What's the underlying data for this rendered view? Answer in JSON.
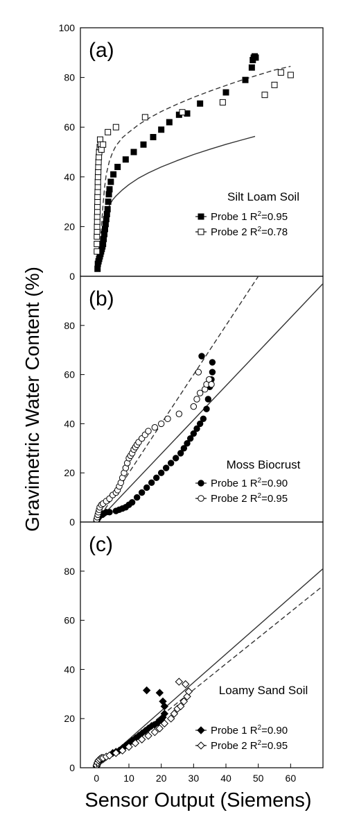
{
  "colors": {
    "axis": "#000000",
    "marker_filled": "#000000",
    "marker_open_fill": "#ffffff",
    "fit_line": "#333333"
  },
  "chart_data": {
    "type": "scatter",
    "xlabel": "Sensor Output (Siemens)",
    "ylabel": "Gravimetric Water Content (%)",
    "xlim": [
      -5,
      70
    ],
    "xticks": [
      "0",
      "10",
      "20",
      "30",
      "40",
      "50",
      "60"
    ],
    "grid": false,
    "panels": [
      {
        "label": "(a)",
        "title": "Silt Loam Soil",
        "ylim": [
          0,
          100
        ],
        "yticks": [
          "0",
          "20",
          "40",
          "60",
          "80",
          "100"
        ],
        "legend": [
          {
            "text": "Probe 1 R",
            "sup": "2",
            "value": "=0.95"
          },
          {
            "text": "Probe 2 R",
            "sup": "2",
            "value": "=0.78"
          }
        ],
        "series": [
          {
            "marker": "square-filled",
            "x": [
              0.3,
              0.4,
              0.6,
              0.8,
              1.0,
              1.2,
              1.4,
              1.6,
              1.8,
              2.0,
              2.2,
              2.4,
              2.6,
              2.8,
              3.0,
              3.2,
              3.4,
              3.6,
              3.8,
              4.0,
              4.4,
              5.2,
              6.5,
              9.0,
              11.5,
              14.5,
              17.5,
              20.0,
              22.5,
              25.5,
              28.0,
              32.0,
              40.0,
              46.0,
              48.0,
              48.3,
              48.6,
              48.9,
              49.2
            ],
            "y": [
              3,
              5,
              6,
              7,
              8,
              9,
              10,
              11,
              12,
              13,
              15,
              17,
              19,
              21,
              23,
              25,
              27,
              30,
              33,
              35,
              38,
              41,
              44,
              47,
              50,
              53,
              56,
              59,
              62,
              65,
              65.5,
              69.5,
              74,
              79,
              84,
              87,
              88,
              88.5,
              88
            ]
          },
          {
            "marker": "square-open",
            "x": [
              0.1,
              0.1,
              0.1,
              0.15,
              0.15,
              0.2,
              0.2,
              0.25,
              0.25,
              0.3,
              0.3,
              0.35,
              0.4,
              0.4,
              0.45,
              0.5,
              0.55,
              0.6,
              0.7,
              0.8,
              1.0,
              1.1,
              1.3,
              1.5,
              2.0,
              3.5,
              6.0,
              15.0,
              26.5,
              39.0,
              52.0,
              55.0,
              57.0,
              60.0
            ],
            "y": [
              10,
              13,
              16,
              18,
              20,
              22,
              24,
              26,
              28,
              30,
              32,
              34,
              36,
              38,
              40,
              42,
              44,
              46,
              48,
              50,
              52,
              55,
              53,
              51,
              53,
              58,
              60,
              64,
              66,
              70,
              73,
              77,
              82,
              81
            ]
          }
        ],
        "fits": [
          {
            "style": "solid",
            "x": [
              0.5,
              1,
              2,
              3,
              4,
              5,
              6,
              8,
              10,
              13,
              16,
              20,
              25,
              30,
              35,
              40,
              45,
              49
            ],
            "y": [
              4.1,
              9.5,
              18.8,
              25.0,
              28.6,
              30.8,
              32.3,
              34.8,
              36.9,
              39.5,
              41.6,
              44.0,
              46.6,
              49.0,
              51.1,
              53.1,
              54.9,
              56.3
            ]
          },
          {
            "style": "dashed",
            "x": [
              0.5,
              1,
              1.5,
              2,
              2.5,
              3,
              4,
              5,
              6,
              8,
              10,
              13,
              16,
              20,
              25,
              30,
              35,
              40,
              45,
              50,
              55,
              60
            ],
            "y": [
              5.0,
              11.0,
              20.0,
              29.0,
              36.0,
              41.0,
              46.5,
              50.0,
              52.5,
              55.8,
              58.0,
              61.0,
              63.5,
              66.3,
              69.3,
              72.0,
              74.5,
              76.8,
              79.0,
              81.0,
              83.0,
              84.5
            ]
          }
        ]
      },
      {
        "label": "(b)",
        "title": "Moss Biocrust",
        "ylim": [
          0,
          100
        ],
        "yticks": [
          "0",
          "20",
          "40",
          "60",
          "80"
        ],
        "legend": [
          {
            "text": "Probe 1 R",
            "sup": "2",
            "value": "=0.90"
          },
          {
            "text": "Probe 2 R",
            "sup": "2",
            "value": "=0.95"
          }
        ],
        "series": [
          {
            "marker": "circle-filled",
            "x": [
              0,
              0.2,
              0.4,
              0.7,
              1.0,
              1.4,
              1.8,
              2.3,
              3.0,
              4.0,
              6.0,
              7.0,
              8.0,
              9.0,
              10.0,
              11.0,
              12.5,
              14.0,
              15.5,
              17.0,
              18.5,
              20.0,
              21.5,
              23.0,
              24.5,
              26.0,
              27.0,
              28.0,
              29.0,
              30.0,
              31.0,
              32.0,
              33.0,
              34.0,
              34.5,
              35.0,
              35.5,
              35.8,
              35.8,
              32.5
            ],
            "y": [
              0.5,
              1,
              1.5,
              2,
              2.5,
              3,
              3,
              3.5,
              4,
              4,
              4.5,
              5,
              5.5,
              6,
              7,
              8,
              10,
              12,
              14,
              16,
              18,
              20,
              22,
              24,
              26,
              28,
              30,
              32,
              34,
              36,
              38,
              40,
              42,
              46,
              50,
              55,
              58,
              61,
              65,
              67.5
            ]
          },
          {
            "marker": "circle-open",
            "x": [
              0,
              0.2,
              0.4,
              0.6,
              0.8,
              1.0,
              1.5,
              2.0,
              3.0,
              4.0,
              5.0,
              6.0,
              6.5,
              7.0,
              7.5,
              8.0,
              8.5,
              9.0,
              9.5,
              10.0,
              10.5,
              11.0,
              11.5,
              12.0,
              12.5,
              13.0,
              14.0,
              15.0,
              16.0,
              18.0,
              20.0,
              22.0,
              25.5,
              30.0,
              31.0,
              32.0,
              33.5,
              34.0,
              34.8,
              35.5,
              31.5
            ],
            "y": [
              1,
              2,
              3,
              4,
              5,
              6,
              7,
              7.5,
              8.5,
              9.5,
              11,
              12,
              13,
              14.5,
              16,
              18,
              20,
              22,
              24,
              26,
              27,
              28,
              29.5,
              30.5,
              31.5,
              32.5,
              34,
              35.5,
              37,
              38.5,
              40,
              42,
              44,
              47,
              50,
              52.5,
              54,
              56,
              58,
              56,
              61
            ]
          }
        ],
        "fits": [
          {
            "style": "solid",
            "x": [
              0,
              70
            ],
            "y": [
              0,
              97
            ]
          },
          {
            "style": "dashed",
            "x": [
              0,
              50
            ],
            "y": [
              0,
              100
            ]
          }
        ]
      },
      {
        "label": "(c)",
        "title": "Loamy Sand Soil",
        "ylim": [
          0,
          100
        ],
        "yticks": [
          "0",
          "20",
          "40",
          "60",
          "80"
        ],
        "legend": [
          {
            "text": "Probe 1 R",
            "sup": "2",
            "value": "=0.90"
          },
          {
            "text": "Probe 2 R",
            "sup": "2",
            "value": "=0.95"
          }
        ],
        "series": [
          {
            "marker": "diamond-filled",
            "x": [
              0,
              0.1,
              0.2,
              0.3,
              0.5,
              1.0,
              1.5,
              2.0,
              3.0,
              4.0,
              5.0,
              6.0,
              7.0,
              8.0,
              9.0,
              10.0,
              11.0,
              12.0,
              13.0,
              14.0,
              15.0,
              16.0,
              17.0,
              18.0,
              19.0,
              20.0,
              20.5,
              21.0,
              21.0,
              20.5,
              19.5,
              15.5
            ],
            "y": [
              0.5,
              1,
              1.5,
              2,
              2.5,
              3,
              3.5,
              4,
              4.5,
              5,
              6,
              6.5,
              7,
              8,
              9,
              10,
              11,
              12,
              13,
              14,
              15,
              16,
              17,
              17.5,
              18.5,
              19.5,
              20.5,
              22,
              25,
              27,
              30.5,
              31.5
            ]
          },
          {
            "marker": "diamond-open",
            "x": [
              0,
              0.3,
              0.6,
              1.0,
              1.5,
              2.0,
              3.0,
              4.0,
              6.0,
              8.0,
              10.0,
              12.0,
              14.0,
              16.0,
              18.0,
              19.5,
              21.0,
              23.0,
              24.0,
              25.0,
              26.0,
              27.0,
              28.0,
              28.5,
              25.5,
              27.5
            ],
            "y": [
              1,
              2,
              3,
              3.5,
              4,
              4,
              4.5,
              5,
              6,
              7,
              8.5,
              10,
              11.5,
              13,
              14.5,
              16,
              18,
              20,
              22,
              24,
              25,
              27,
              29,
              31,
              35,
              34
            ]
          }
        ],
        "fits": [
          {
            "style": "solid",
            "x": [
              0,
              70
            ],
            "y": [
              0,
              81
            ]
          },
          {
            "style": "dashed",
            "x": [
              0,
              70
            ],
            "y": [
              0,
              74
            ]
          }
        ]
      }
    ]
  }
}
